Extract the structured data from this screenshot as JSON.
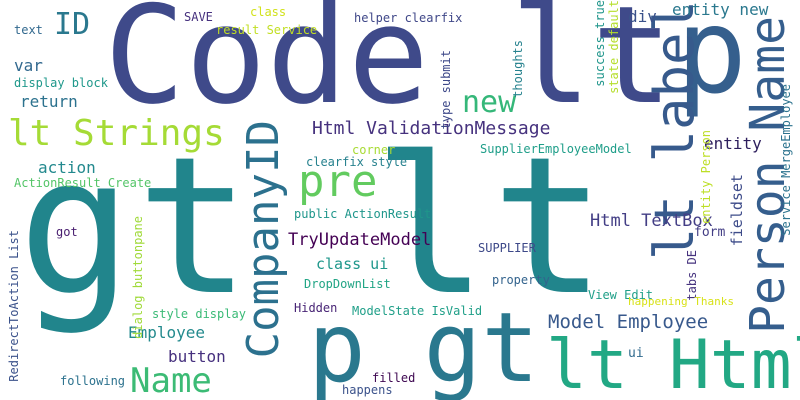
{
  "words": [
    {
      "text": "gt lt",
      "color": "#21858c"
    },
    {
      "text": "Code lt",
      "color": "#3f4a8a"
    },
    {
      "text": "p",
      "color": "#355f8d"
    },
    {
      "text": "p gt",
      "color": "#2a788e"
    },
    {
      "text": "lt Html",
      "color": "#22a884"
    },
    {
      "text": "lt label",
      "color": "#375a8c"
    },
    {
      "text": "Person Name",
      "color": "#355e8d"
    },
    {
      "text": "CompanyID",
      "color": "#2c718e"
    },
    {
      "text": "pre",
      "color": "#62cb5f"
    },
    {
      "text": "lt Strings",
      "color": "#a5db36"
    },
    {
      "text": "Name",
      "color": "#3cbb75"
    },
    {
      "text": "new",
      "color": "#35b779"
    },
    {
      "text": "ID",
      "color": "#2a788e"
    },
    {
      "text": "Html ValidationMessage",
      "color": "#46327e"
    },
    {
      "text": "Model Employee",
      "color": "#38598c"
    },
    {
      "text": "Html TextBox",
      "color": "#433e85"
    },
    {
      "text": "TryUpdateModel",
      "color": "#440154"
    },
    {
      "text": "entity new",
      "color": "#2a788e"
    },
    {
      "text": "entity",
      "color": "#2d1e5d"
    },
    {
      "text": "div",
      "color": "#3b528b"
    },
    {
      "text": "action",
      "color": "#23898e"
    },
    {
      "text": "return",
      "color": "#2c728e"
    },
    {
      "text": "var",
      "color": "#31688e"
    },
    {
      "text": "Employee",
      "color": "#238a8d"
    },
    {
      "text": "button",
      "color": "#46307e"
    },
    {
      "text": "class ui",
      "color": "#1f978b"
    },
    {
      "text": "fieldset",
      "color": "#3e4c8a"
    },
    {
      "text": "form",
      "color": "#433e85"
    },
    {
      "text": "ui",
      "color": "#306a8e"
    },
    {
      "text": "SAVE",
      "color": "#46307e"
    },
    {
      "text": "class",
      "color": "#d2e21b"
    },
    {
      "text": "result Service",
      "color": "#c2df23"
    },
    {
      "text": "helper clearfix",
      "color": "#3f4788"
    },
    {
      "text": "text",
      "color": "#31688e"
    },
    {
      "text": "display block",
      "color": "#1f988b"
    },
    {
      "text": "type submit",
      "color": "#3e4989"
    },
    {
      "text": "thoughts",
      "color": "#26828e"
    },
    {
      "text": "success true",
      "color": "#1f958b"
    },
    {
      "text": "state default",
      "color": "#b5de2b"
    },
    {
      "text": "entity Person",
      "color": "#bddf26"
    },
    {
      "text": "Service MergeEmployee",
      "color": "#2c738e"
    },
    {
      "text": "SupplierEmployeeModel",
      "color": "#1f9e89"
    },
    {
      "text": "corner",
      "color": "#a8db34"
    },
    {
      "text": "clearfix style",
      "color": "#26818e"
    },
    {
      "text": "ActionResult Create",
      "color": "#54c568"
    },
    {
      "text": "public ActionResult",
      "color": "#1f968b"
    },
    {
      "text": "got",
      "color": "#481d6f"
    },
    {
      "text": "RedirectToAction List",
      "color": "#3b528b"
    },
    {
      "text": "dialog buttonpane",
      "color": "#a0da39"
    },
    {
      "text": "DropDownList",
      "color": "#21a585"
    },
    {
      "text": "SUPPLIER",
      "color": "#3e4989"
    },
    {
      "text": "tabs DE",
      "color": "#46337f"
    },
    {
      "text": "property",
      "color": "#33638d"
    },
    {
      "text": "View Edit",
      "color": "#1f9f88"
    },
    {
      "text": "happening Thanks",
      "color": "#d8e219"
    },
    {
      "text": "Hidden",
      "color": "#482475"
    },
    {
      "text": "ModelState IsValid",
      "color": "#1f9f88"
    },
    {
      "text": "style display",
      "color": "#3aba76"
    },
    {
      "text": "following",
      "color": "#2c728e"
    },
    {
      "text": "filled",
      "color": "#3e0751"
    },
    {
      "text": "happens",
      "color": "#3b528b"
    }
  ]
}
